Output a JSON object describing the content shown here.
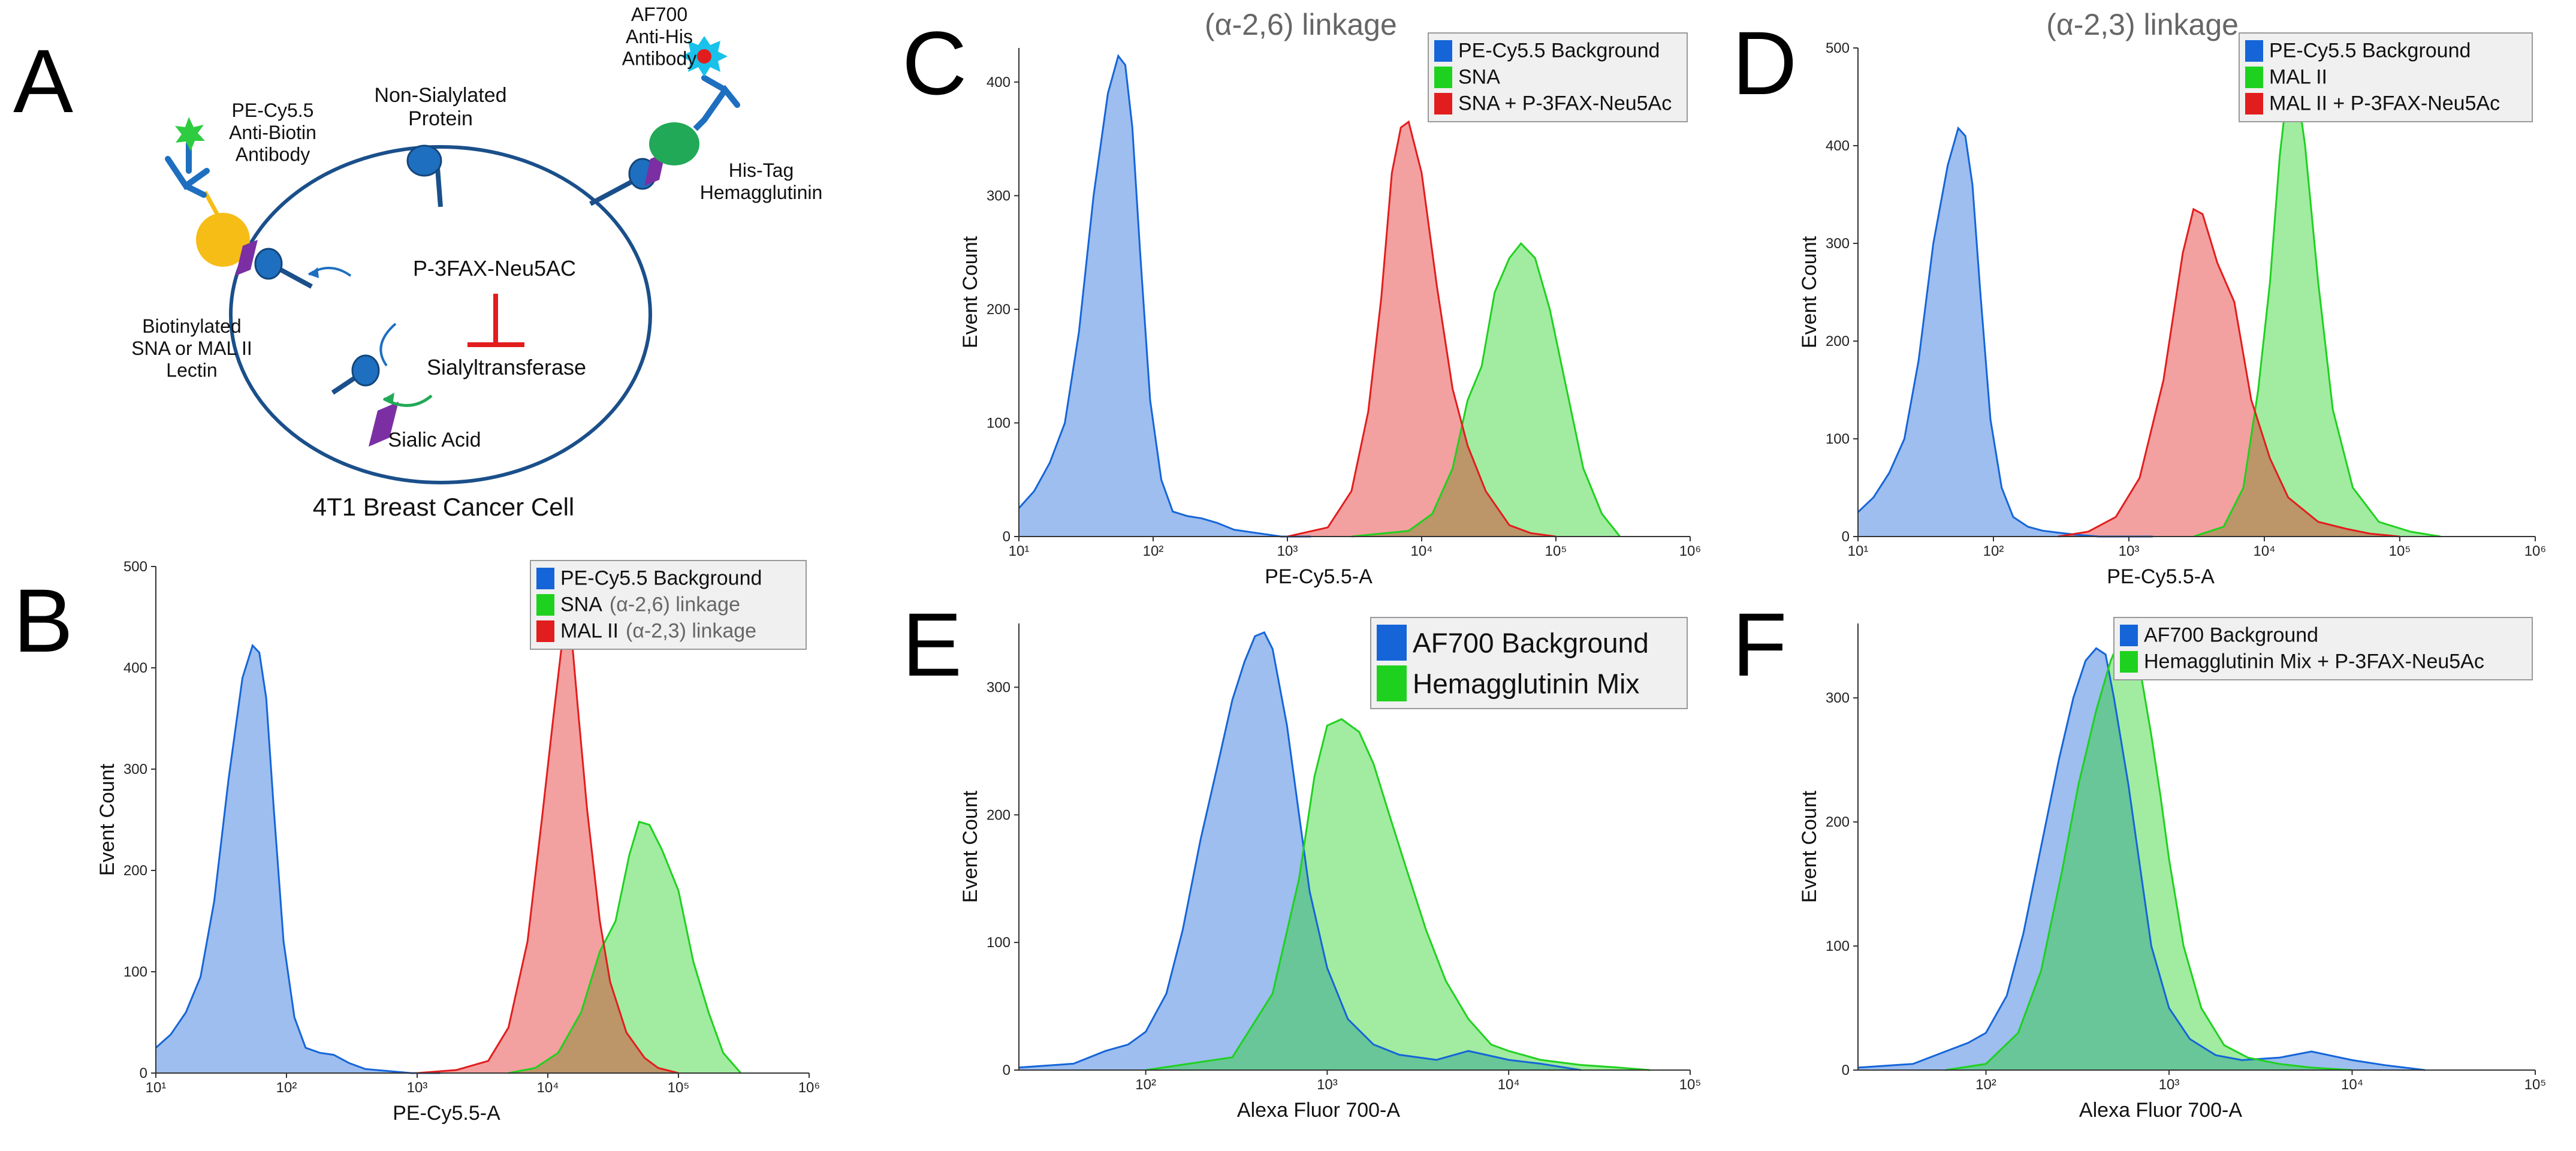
{
  "panels": [
    {
      "letter": "A"
    },
    {
      "letter": "B"
    },
    {
      "letter": "C"
    },
    {
      "letter": "D"
    },
    {
      "letter": "E"
    },
    {
      "letter": "F"
    }
  ],
  "diagram": {
    "pe_antibody": "PE-Cy5.5\nAnti-Biotin\nAntibody",
    "non_sialylated": "Non-Sialylated\nProtein",
    "af700_antibody": "AF700\nAnti-His\nAntibody",
    "his_tag": "His-Tag\nHemagglutinin",
    "inhibitor": "P-3FAX-Neu5AC",
    "lectin": "Biotinylated\nSNA or MAL II\nLectin",
    "enzyme": "Sialyltransferase",
    "sialic_acid": "Sialic Acid",
    "cell_label": "4T1 Breast Cancer Cell"
  },
  "colors": {
    "blue": "#1565d8",
    "green": "#1fd11f",
    "red": "#e21d1d",
    "teal": "#3ec3b5"
  },
  "chart_data": [
    {
      "panel": "B",
      "type": "area",
      "title": "",
      "xlabel": "PE-Cy5.5-A",
      "ylabel": "Event Count",
      "xscale": "log",
      "xlim": [
        10,
        1000000
      ],
      "ylim": [
        0,
        500
      ],
      "yticks": [
        0,
        100,
        200,
        300,
        400,
        500
      ],
      "xticks": [
        {
          "v": 10,
          "t": "10¹"
        },
        {
          "v": 100,
          "t": "10²"
        },
        {
          "v": 1000,
          "t": "10³"
        },
        {
          "v": 10000,
          "t": "10⁴"
        },
        {
          "v": 100000,
          "t": "10⁵"
        },
        {
          "v": 1000000,
          "t": "10⁶"
        }
      ],
      "legend": {
        "position": "top-right",
        "style": "small",
        "entries": [
          {
            "label": "PE-Cy5.5 Background",
            "note": "",
            "color": "#1565d8"
          },
          {
            "label": "SNA",
            "note": "(α-2,6) linkage",
            "color": "#1fd11f"
          },
          {
            "label": "MAL II",
            "note": "(α-2,3) linkage",
            "color": "#e21d1d"
          }
        ]
      },
      "series": [
        {
          "name": "PE-Cy5.5 Background",
          "color": "#1565d8",
          "x": [
            10,
            13,
            17,
            22,
            28,
            36,
            46,
            55,
            62,
            70,
            80,
            95,
            115,
            140,
            180,
            230,
            300,
            400,
            600,
            900,
            1500
          ],
          "y": [
            25,
            38,
            60,
            95,
            170,
            290,
            390,
            422,
            415,
            370,
            260,
            130,
            55,
            25,
            20,
            18,
            10,
            4,
            2,
            0,
            0
          ]
        },
        {
          "name": "SNA",
          "color": "#1fd11f",
          "x": [
            5000,
            8000,
            12000,
            18000,
            25000,
            33000,
            42000,
            50000,
            60000,
            75000,
            100000,
            130000,
            170000,
            220000,
            300000
          ],
          "y": [
            0,
            5,
            20,
            60,
            120,
            150,
            215,
            248,
            245,
            220,
            180,
            110,
            60,
            20,
            0
          ]
        },
        {
          "name": "MAL II",
          "color": "#e21d1d",
          "x": [
            1000,
            2000,
            3500,
            5000,
            7000,
            9000,
            11000,
            13000,
            14000,
            15000,
            17000,
            20000,
            25000,
            30000,
            40000,
            55000,
            70000,
            100000
          ],
          "y": [
            0,
            3,
            12,
            45,
            130,
            250,
            350,
            430,
            468,
            440,
            360,
            260,
            150,
            90,
            40,
            15,
            5,
            0
          ]
        }
      ]
    },
    {
      "panel": "C",
      "type": "area",
      "title": "(α-2,6) linkage",
      "xlabel": "PE-Cy5.5-A",
      "ylabel": "Event Count",
      "xscale": "log",
      "xlim": [
        10,
        1000000
      ],
      "ylim": [
        0,
        430
      ],
      "yticks": [
        0,
        100,
        200,
        300,
        400
      ],
      "xticks": [
        {
          "v": 10,
          "t": "10¹"
        },
        {
          "v": 100,
          "t": "10²"
        },
        {
          "v": 1000,
          "t": "10³"
        },
        {
          "v": 10000,
          "t": "10⁴"
        },
        {
          "v": 100000,
          "t": "10⁵"
        },
        {
          "v": 1000000,
          "t": "10⁶"
        }
      ],
      "legend": {
        "position": "top-right",
        "style": "small",
        "entries": [
          {
            "label": "PE-Cy5.5 Background",
            "note": "",
            "color": "#1565d8"
          },
          {
            "label": "SNA",
            "note": "",
            "color": "#1fd11f"
          },
          {
            "label": "SNA + P-3FAX-Neu5Ac",
            "note": "",
            "color": "#e21d1d"
          }
        ]
      },
      "series": [
        {
          "name": "PE-Cy5.5 Background",
          "color": "#1565d8",
          "x": [
            10,
            13,
            17,
            22,
            28,
            36,
            46,
            55,
            62,
            70,
            80,
            95,
            115,
            140,
            180,
            230,
            300,
            400,
            600,
            900,
            1500
          ],
          "y": [
            25,
            40,
            65,
            100,
            180,
            300,
            390,
            423,
            415,
            360,
            250,
            120,
            50,
            22,
            18,
            16,
            12,
            6,
            3,
            0,
            0
          ]
        },
        {
          "name": "SNA",
          "color": "#1fd11f",
          "x": [
            3000,
            8000,
            12000,
            17000,
            22000,
            28000,
            35000,
            45000,
            55000,
            70000,
            90000,
            120000,
            160000,
            220000,
            300000
          ],
          "y": [
            0,
            5,
            20,
            60,
            120,
            150,
            215,
            245,
            258,
            245,
            200,
            130,
            60,
            20,
            0
          ]
        },
        {
          "name": "SNA + P-3FAX-Neu5Ac",
          "color": "#e21d1d",
          "x": [
            1000,
            2000,
            3000,
            4000,
            5000,
            6000,
            7000,
            8000,
            10000,
            13000,
            17000,
            22000,
            30000,
            45000,
            65000,
            100000
          ],
          "y": [
            0,
            8,
            40,
            110,
            210,
            320,
            360,
            365,
            320,
            220,
            130,
            80,
            40,
            10,
            3,
            0
          ]
        }
      ]
    },
    {
      "panel": "D",
      "type": "area",
      "title": "(α-2,3) linkage",
      "xlabel": "PE-Cy5.5-A",
      "ylabel": "Event Count",
      "xscale": "log",
      "xlim": [
        10,
        1000000
      ],
      "ylim": [
        0,
        500
      ],
      "yticks": [
        0,
        100,
        200,
        300,
        400,
        500
      ],
      "xticks": [
        {
          "v": 10,
          "t": "10¹"
        },
        {
          "v": 100,
          "t": "10²"
        },
        {
          "v": 1000,
          "t": "10³"
        },
        {
          "v": 10000,
          "t": "10⁴"
        },
        {
          "v": 100000,
          "t": "10⁵"
        },
        {
          "v": 1000000,
          "t": "10⁶"
        }
      ],
      "legend": {
        "position": "top-right",
        "style": "small",
        "entries": [
          {
            "label": "PE-Cy5.5 Background",
            "note": "",
            "color": "#1565d8"
          },
          {
            "label": "MAL II",
            "note": "",
            "color": "#1fd11f"
          },
          {
            "label": "MAL II + P-3FAX-Neu5Ac",
            "note": "",
            "color": "#e21d1d"
          }
        ]
      },
      "series": [
        {
          "name": "PE-Cy5.5 Background",
          "color": "#1565d8",
          "x": [
            10,
            13,
            17,
            22,
            28,
            36,
            46,
            55,
            62,
            70,
            80,
            95,
            115,
            140,
            180,
            230,
            300,
            400,
            600,
            900,
            1500
          ],
          "y": [
            25,
            40,
            65,
            100,
            180,
            300,
            380,
            418,
            410,
            360,
            250,
            120,
            50,
            20,
            10,
            6,
            4,
            2,
            0,
            0,
            0
          ]
        },
        {
          "name": "MAL II",
          "color": "#1fd11f",
          "x": [
            3000,
            5000,
            7000,
            9000,
            11000,
            13000,
            15000,
            17000,
            20000,
            25000,
            32000,
            45000,
            70000,
            120000,
            200000
          ],
          "y": [
            0,
            10,
            50,
            150,
            260,
            390,
            465,
            470,
            400,
            260,
            130,
            50,
            15,
            5,
            0
          ]
        },
        {
          "name": "MAL II + P-3FAX-Neu5Ac",
          "color": "#e21d1d",
          "x": [
            300,
            500,
            800,
            1200,
            1800,
            2500,
            3000,
            3500,
            4500,
            6000,
            8000,
            11000,
            15000,
            25000,
            40000,
            60000,
            100000
          ],
          "y": [
            0,
            5,
            20,
            60,
            160,
            290,
            335,
            330,
            280,
            240,
            140,
            80,
            40,
            15,
            8,
            3,
            0
          ]
        }
      ]
    },
    {
      "panel": "E",
      "type": "area",
      "title": "",
      "xlabel": "Alexa Fluor 700-A",
      "ylabel": "Event Count",
      "xscale": "log",
      "xlim": [
        20,
        100000
      ],
      "ylim": [
        0,
        350
      ],
      "yticks": [
        0,
        100,
        200,
        300
      ],
      "xticks": [
        {
          "v": 100,
          "t": "10²"
        },
        {
          "v": 1000,
          "t": "10³"
        },
        {
          "v": 10000,
          "t": "10⁴"
        },
        {
          "v": 100000,
          "t": "10⁵"
        }
      ],
      "legend": {
        "position": "top-right",
        "style": "large",
        "entries": [
          {
            "label": "AF700 Background",
            "note": "",
            "color": "#1565d8"
          },
          {
            "label": "Hemagglutinin Mix",
            "note": "",
            "color": "#1fd11f"
          }
        ]
      },
      "series": [
        {
          "name": "AF700 Background",
          "color": "#1565d8",
          "x": [
            20,
            40,
            60,
            80,
            100,
            130,
            160,
            200,
            250,
            300,
            350,
            400,
            450,
            500,
            600,
            700,
            800,
            1000,
            1300,
            1800,
            2500,
            4000,
            6000,
            10000,
            15000,
            25000
          ],
          "y": [
            2,
            5,
            15,
            20,
            30,
            60,
            110,
            180,
            240,
            290,
            320,
            340,
            343,
            330,
            270,
            200,
            140,
            80,
            40,
            20,
            12,
            8,
            15,
            8,
            5,
            0
          ]
        },
        {
          "name": "Hemagglutinin Mix",
          "color": "#1fd11f",
          "x": [
            100,
            300,
            500,
            700,
            850,
            1000,
            1200,
            1500,
            1800,
            2200,
            2700,
            3500,
            4500,
            6000,
            8000,
            10000,
            15000,
            25000,
            40000,
            60000
          ],
          "y": [
            0,
            10,
            60,
            150,
            230,
            270,
            275,
            265,
            240,
            200,
            160,
            110,
            70,
            40,
            20,
            15,
            8,
            4,
            2,
            0
          ]
        }
      ]
    },
    {
      "panel": "F",
      "type": "area",
      "title": "",
      "xlabel": "Alexa Fluor 700-A",
      "ylabel": "Event Count",
      "xscale": "log",
      "xlim": [
        20,
        100000
      ],
      "ylim": [
        0,
        360
      ],
      "yticks": [
        0,
        100,
        200,
        300
      ],
      "xticks": [
        {
          "v": 100,
          "t": "10²"
        },
        {
          "v": 1000,
          "t": "10³"
        },
        {
          "v": 10000,
          "t": "10⁴"
        },
        {
          "v": 100000,
          "t": "10⁵"
        }
      ],
      "legend": {
        "position": "top-right",
        "style": "small",
        "entries": [
          {
            "label": "AF700 Background",
            "note": "",
            "color": "#1565d8"
          },
          {
            "label": "Hemagglutinin Mix + P-3FAX-Neu5Ac",
            "note": "",
            "color": "#1fd11f"
          }
        ]
      },
      "series": [
        {
          "name": "AF700 Background",
          "color": "#1565d8",
          "x": [
            20,
            40,
            60,
            80,
            100,
            130,
            160,
            200,
            250,
            300,
            350,
            400,
            450,
            500,
            600,
            700,
            800,
            1000,
            1300,
            1800,
            2500,
            4000,
            6000,
            10000,
            15000,
            25000
          ],
          "y": [
            2,
            5,
            15,
            22,
            30,
            60,
            110,
            180,
            250,
            300,
            330,
            340,
            335,
            300,
            230,
            160,
            100,
            50,
            25,
            12,
            8,
            10,
            15,
            8,
            4,
            0
          ]
        },
        {
          "name": "Hemagglutinin Mix + P-3FAX-Neu5Ac",
          "color": "#1fd11f",
          "x": [
            60,
            100,
            150,
            200,
            260,
            320,
            400,
            480,
            550,
            620,
            700,
            800,
            900,
            1000,
            1200,
            1500,
            2000,
            2700,
            4000,
            6000,
            10000
          ],
          "y": [
            0,
            5,
            30,
            80,
            160,
            230,
            290,
            330,
            350,
            345,
            320,
            270,
            220,
            170,
            100,
            50,
            20,
            10,
            5,
            2,
            0
          ]
        }
      ]
    }
  ]
}
